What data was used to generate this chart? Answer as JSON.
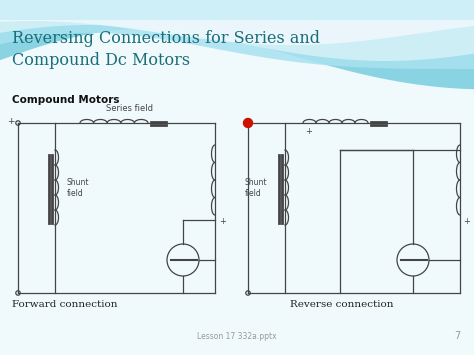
{
  "title": "Reversing Connections for Series and\nCompound Dc Motors",
  "subtitle": "Compound Motors",
  "forward_label": "Forward connection",
  "reverse_label": "Reverse connection",
  "footer": "Lesson 17 332a.pptx",
  "page_num": "7",
  "bg_white": "#f7fcfe",
  "wave1_color": "#8dd4e0",
  "wave2_color": "#b8e8f2",
  "wave3_color": "#ffffff",
  "circuit_color": "#444444",
  "red_dot_color": "#cc1100",
  "title_color": "#1a6e7a",
  "subtitle_color": "#111111",
  "footer_color": "#999999"
}
